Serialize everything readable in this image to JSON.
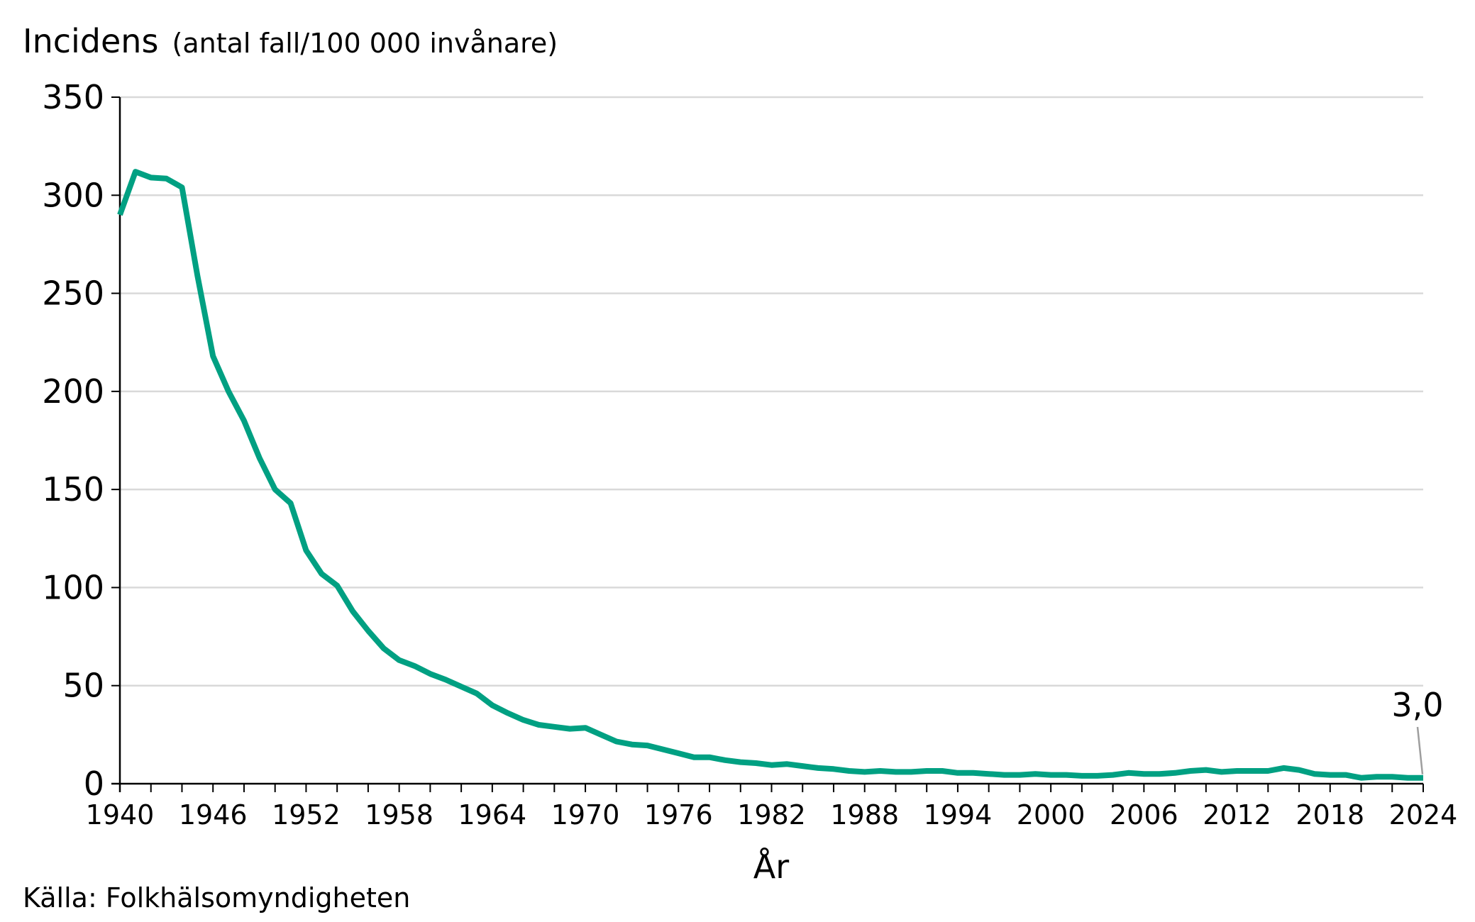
{
  "chart_data": {
    "type": "line",
    "ylabel": "Incidens",
    "ylabel_unit": "(antal fall/100 000 invånare)",
    "xlabel": "År",
    "ylim": [
      0,
      350
    ],
    "xlim": [
      1940,
      2024
    ],
    "yticks": [
      0,
      50,
      100,
      150,
      200,
      250,
      300,
      350
    ],
    "ytick_labels": [
      "0",
      "50",
      "100",
      "150",
      "200",
      "250",
      "300",
      "350"
    ],
    "xticks": [
      1940,
      1946,
      1952,
      1958,
      1964,
      1970,
      1976,
      1982,
      1988,
      1994,
      2000,
      2006,
      2012,
      2018,
      2024
    ],
    "xtick_labels": [
      "1940",
      "1946",
      "1952",
      "1958",
      "1964",
      "1970",
      "1976",
      "1982",
      "1988",
      "1994",
      "2000",
      "2006",
      "2012",
      "2018",
      "2024"
    ],
    "grid": "horizontal",
    "line_color": "#00a082",
    "grid_color": "#d9d9d9",
    "annotation": {
      "x": 2024,
      "y": 3.0,
      "label": "3,0"
    },
    "x": [
      1940,
      1941,
      1942,
      1943,
      1944,
      1945,
      1946,
      1947,
      1948,
      1949,
      1950,
      1951,
      1952,
      1953,
      1954,
      1955,
      1956,
      1957,
      1958,
      1959,
      1960,
      1961,
      1962,
      1963,
      1964,
      1965,
      1966,
      1967,
      1968,
      1969,
      1970,
      1971,
      1972,
      1973,
      1974,
      1975,
      1976,
      1977,
      1978,
      1979,
      1980,
      1981,
      1982,
      1983,
      1984,
      1985,
      1986,
      1987,
      1988,
      1989,
      1990,
      1991,
      1992,
      1993,
      1994,
      1995,
      1996,
      1997,
      1998,
      1999,
      2000,
      2001,
      2002,
      2003,
      2004,
      2005,
      2006,
      2007,
      2008,
      2009,
      2010,
      2011,
      2012,
      2013,
      2014,
      2015,
      2016,
      2017,
      2018,
      2019,
      2020,
      2021,
      2022,
      2023,
      2024
    ],
    "series": [
      {
        "values": [
          290,
          312,
          309,
          308.5,
          304,
          259,
          218,
          200,
          185,
          166,
          150,
          143,
          119,
          107,
          101,
          88,
          78,
          69,
          63,
          60,
          56,
          53,
          49.5,
          46,
          40,
          36,
          32.5,
          30,
          29,
          28,
          28.5,
          25,
          21.5,
          20,
          19.5,
          17.5,
          15.5,
          13.5,
          13.5,
          12,
          11,
          10.5,
          9.5,
          10,
          9,
          8,
          7.5,
          6.5,
          6,
          6.5,
          6,
          6,
          6.5,
          6.5,
          5.5,
          5.5,
          5,
          4.5,
          4.5,
          5,
          4.5,
          4.5,
          4,
          4,
          4.5,
          5.5,
          5,
          5,
          5.5,
          6.5,
          7,
          6,
          6.5,
          6.5,
          6.5,
          8,
          7,
          5,
          4.5,
          4.5,
          3,
          3.5,
          3.5,
          3,
          3.0
        ]
      }
    ]
  },
  "source": "Källa: Folkhälsomyndigheten"
}
